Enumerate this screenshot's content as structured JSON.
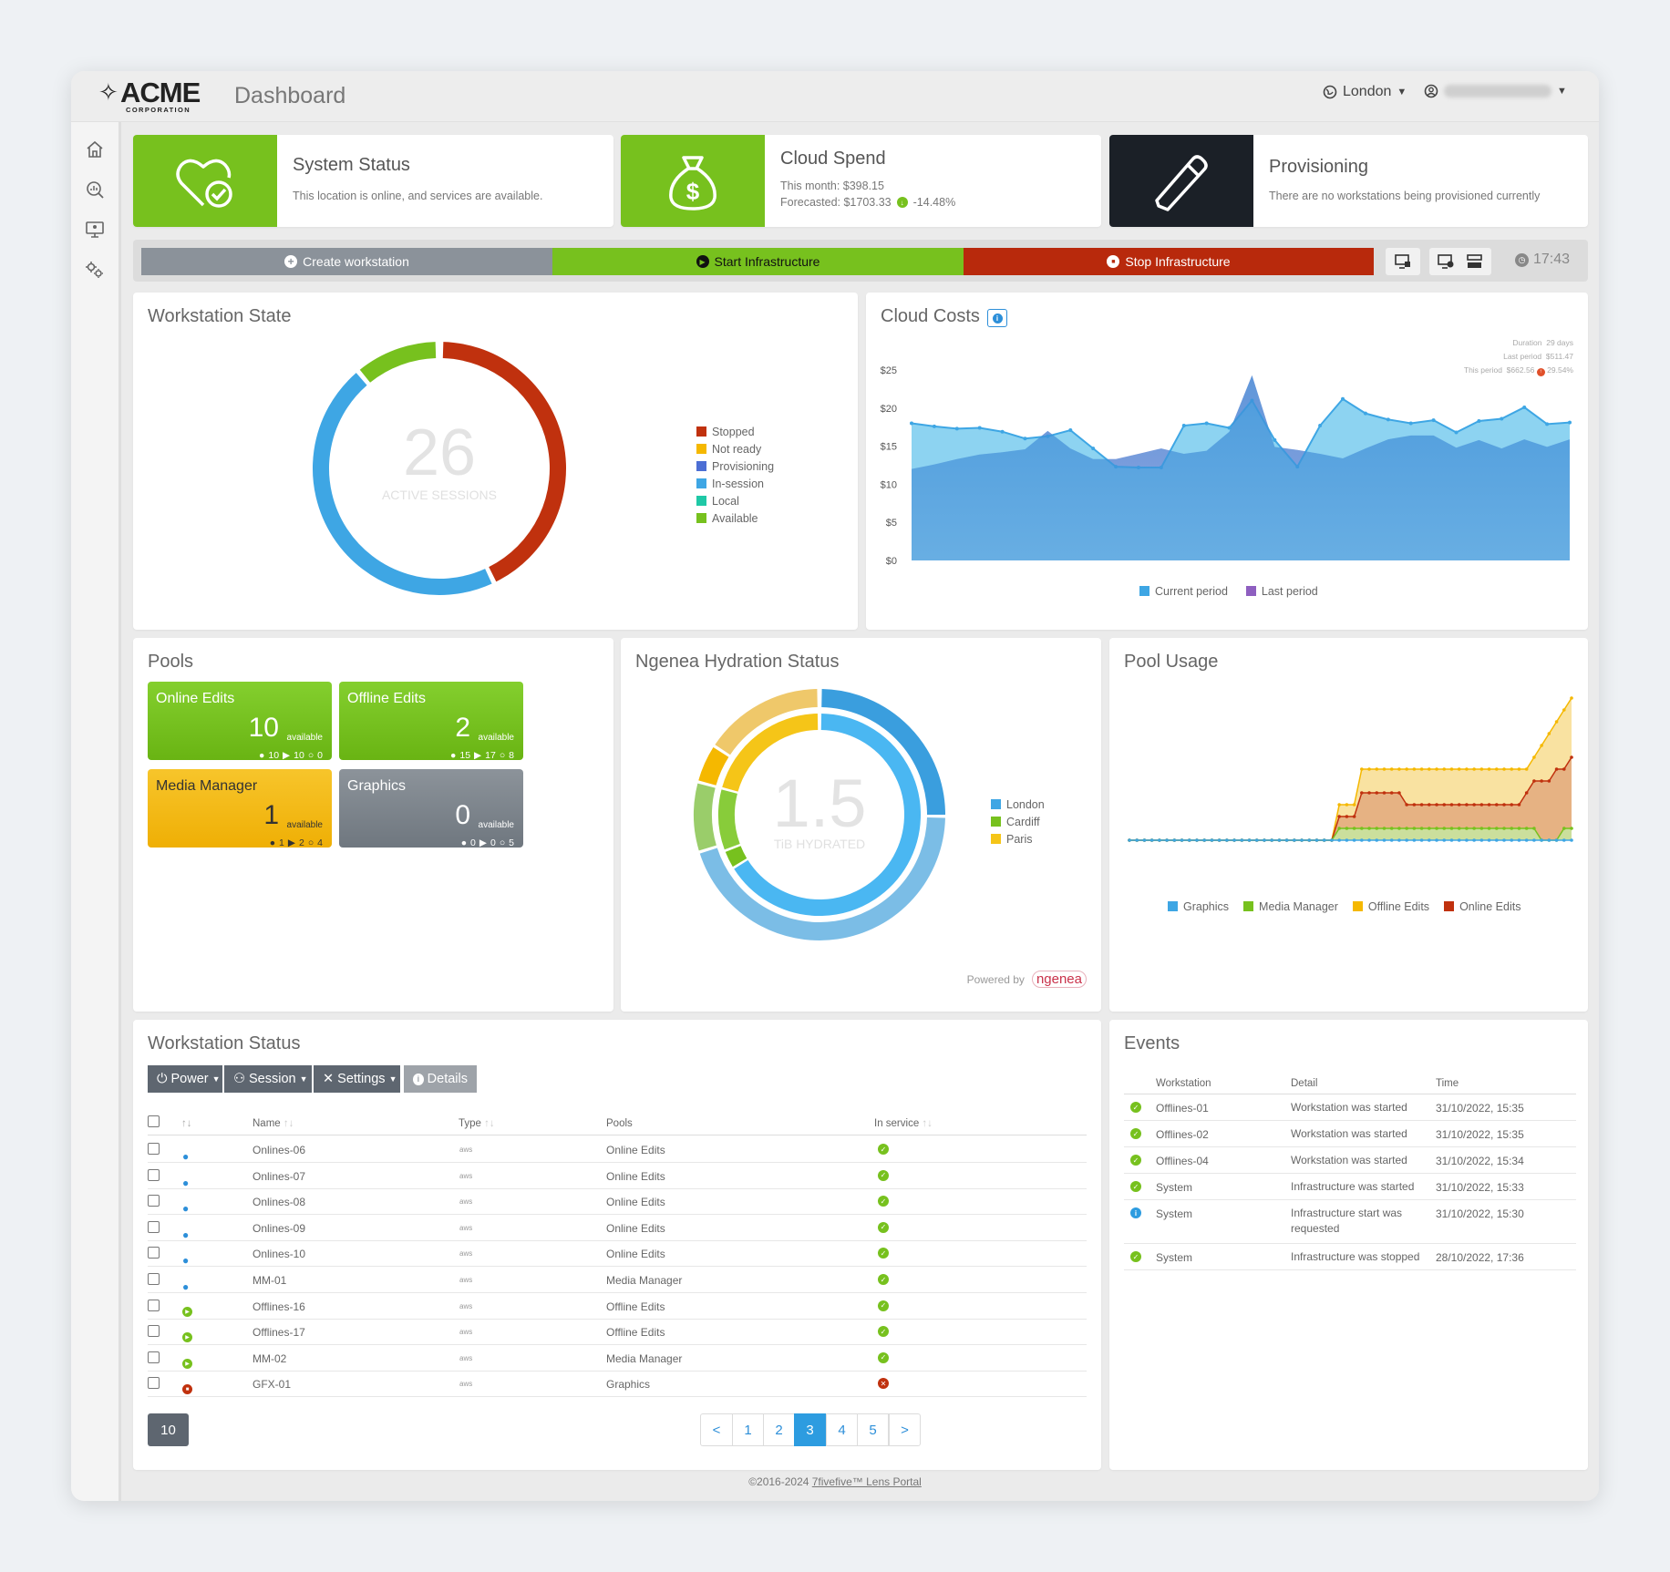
{
  "header": {
    "brand": "ACME",
    "brand_sub": "CORPORATION",
    "page_title": "Dashboard",
    "location": "London"
  },
  "sidebar": {
    "items": [
      "home-icon",
      "analytics-icon",
      "monitor-icon",
      "settings-icon"
    ]
  },
  "cards": {
    "system_status": {
      "title": "System Status",
      "text": "This location is online, and services are available.",
      "color": "#77c11e"
    },
    "cloud_spend": {
      "title": "Cloud Spend",
      "this_month": "This month: $398.15",
      "forecast": "Forecasted: $1703.33",
      "change": "-14.48%",
      "color": "#77c11e"
    },
    "provisioning": {
      "title": "Provisioning",
      "text": "There are no workstations being provisioned currently",
      "color": "#1b2027"
    }
  },
  "actions": {
    "create": "Create workstation",
    "start": "Start Infrastructure",
    "stop": "Stop Infrastructure",
    "time": "17:43"
  },
  "workstation_state": {
    "title": "Workstation State",
    "center_value": "26",
    "center_label": "ACTIVE SESSIONS",
    "legend": [
      {
        "label": "Stopped",
        "color": "#c0310e"
      },
      {
        "label": "Not ready",
        "color": "#f5b800"
      },
      {
        "label": "Provisioning",
        "color": "#4c6ed4"
      },
      {
        "label": "In-session",
        "color": "#3ea6e4"
      },
      {
        "label": "Local",
        "color": "#1fc8a6"
      },
      {
        "label": "Available",
        "color": "#77c11e"
      }
    ]
  },
  "cloud_costs": {
    "title": "Cloud Costs",
    "duration_label": "Duration",
    "duration": "29 days",
    "last_period_label": "Last period",
    "last_period": "$511.47",
    "this_period_label": "This period",
    "this_period": "$662.56",
    "this_change": "29.54%",
    "legend_current": "Current period",
    "legend_last": "Last period"
  },
  "pools": {
    "title": "Pools",
    "available_label": "available",
    "items": [
      {
        "name": "Online Edits",
        "available": "10",
        "s1": "10",
        "s2": "10",
        "s3": "0"
      },
      {
        "name": "Offline Edits",
        "available": "2",
        "s1": "15",
        "s2": "17",
        "s3": "8"
      },
      {
        "name": "Media Manager",
        "available": "1",
        "s1": "1",
        "s2": "2",
        "s3": "4"
      },
      {
        "name": "Graphics",
        "available": "0",
        "s1": "0",
        "s2": "0",
        "s3": "5"
      }
    ]
  },
  "hydration": {
    "title": "Ngenea Hydration Status",
    "center_value": "1.5",
    "center_label": "TiB HYDRATED",
    "legend": [
      {
        "label": "London",
        "color": "#3ea6e4"
      },
      {
        "label": "Cardiff",
        "color": "#77c11e"
      },
      {
        "label": "Paris",
        "color": "#f5c518"
      }
    ],
    "powered": "Powered by",
    "powered_brand": "ngenea"
  },
  "pool_usage": {
    "title": "Pool Usage",
    "legend": [
      {
        "label": "Graphics",
        "color": "#3ea6e4"
      },
      {
        "label": "Media Manager",
        "color": "#77c11e"
      },
      {
        "label": "Offline Edits",
        "color": "#f5b800"
      },
      {
        "label": "Online Edits",
        "color": "#c0310e"
      }
    ]
  },
  "workstation_status": {
    "title": "Workstation Status",
    "buttons": {
      "power": "Power",
      "session": "Session",
      "settings": "Settings",
      "details": "Details"
    },
    "columns": {
      "sort": "↑↓",
      "name": "Name",
      "type": "Type",
      "pools": "Pools",
      "in_service": "In service"
    },
    "rows": [
      {
        "state": "user",
        "name": "Onlines-06",
        "type": "aws",
        "pool": "Online Edits",
        "ok": true
      },
      {
        "state": "user",
        "name": "Onlines-07",
        "type": "aws",
        "pool": "Online Edits",
        "ok": true
      },
      {
        "state": "user",
        "name": "Onlines-08",
        "type": "aws",
        "pool": "Online Edits",
        "ok": true
      },
      {
        "state": "user",
        "name": "Onlines-09",
        "type": "aws",
        "pool": "Online Edits",
        "ok": true
      },
      {
        "state": "user",
        "name": "Onlines-10",
        "type": "aws",
        "pool": "Online Edits",
        "ok": true
      },
      {
        "state": "user",
        "name": "MM-01",
        "type": "aws",
        "pool": "Media Manager",
        "ok": true
      },
      {
        "state": "play",
        "name": "Offlines-16",
        "type": "aws",
        "pool": "Offline Edits",
        "ok": true
      },
      {
        "state": "play",
        "name": "Offlines-17",
        "type": "aws",
        "pool": "Offline Edits",
        "ok": true
      },
      {
        "state": "play",
        "name": "MM-02",
        "type": "aws",
        "pool": "Media Manager",
        "ok": true
      },
      {
        "state": "stop",
        "name": "GFX-01",
        "type": "aws",
        "pool": "Graphics",
        "ok": false
      }
    ],
    "page_size": "10",
    "pagination": [
      "<",
      "1",
      "2",
      "3",
      "4",
      "5",
      ">"
    ],
    "current_page": "3"
  },
  "events": {
    "title": "Events",
    "columns": {
      "workstation": "Workstation",
      "detail": "Detail",
      "time": "Time"
    },
    "rows": [
      {
        "icon": "ok",
        "ws": "Offlines-01",
        "detail": "Workstation was started",
        "time": "31/10/2022, 15:35"
      },
      {
        "icon": "ok",
        "ws": "Offlines-02",
        "detail": "Workstation was started",
        "time": "31/10/2022, 15:35"
      },
      {
        "icon": "ok",
        "ws": "Offlines-04",
        "detail": "Workstation was started",
        "time": "31/10/2022, 15:34"
      },
      {
        "icon": "ok",
        "ws": "System",
        "detail": "Infrastructure was started",
        "time": "31/10/2022, 15:33"
      },
      {
        "icon": "info",
        "ws": "System",
        "detail": "Infrastructure start was requested",
        "time": "31/10/2022, 15:30"
      },
      {
        "icon": "ok",
        "ws": "System",
        "detail": "Infrastructure was stopped",
        "time": "28/10/2022, 17:36"
      }
    ]
  },
  "footer": {
    "copyright": "©2016-2024 ",
    "link": "7fivefive™ Lens Portal"
  },
  "chart_data": [
    {
      "type": "area",
      "title": "Cloud Costs",
      "y_ticks": [
        "$25",
        "$20",
        "$15",
        "$10",
        "$5",
        "$0"
      ],
      "ylim": [
        0,
        25
      ],
      "series": [
        {
          "name": "Current period",
          "values": [
            18,
            17.6,
            17.3,
            17.4,
            16.9,
            16,
            16.3,
            17.1,
            14.7,
            12.3,
            12.2,
            12.2,
            17.7,
            18,
            17.4,
            21,
            15.8,
            12.3,
            17.7,
            21.2,
            19.3,
            18.5,
            18,
            18.4,
            16.8,
            18.3,
            18.6,
            20.1,
            17.9,
            18.1
          ]
        },
        {
          "name": "Last period",
          "values": [
            12,
            12.6,
            13.3,
            13.9,
            14.2,
            14.6,
            17,
            14.7,
            13.3,
            13.3,
            14,
            14.7,
            14,
            14.4,
            16.9,
            24.3,
            14.9,
            14.5,
            14,
            13.4,
            14.7,
            15.9,
            16.4,
            16.4,
            14.8,
            15.8,
            14.7,
            15.9,
            14.9,
            15.9
          ]
        }
      ]
    },
    {
      "type": "area",
      "title": "Pool Usage",
      "series": [
        {
          "name": "Graphics",
          "values": [
            0,
            0,
            0,
            0,
            0,
            0,
            0,
            0,
            0,
            0,
            0,
            0,
            0,
            0,
            0,
            0,
            0,
            0,
            0,
            0,
            0,
            0,
            0,
            0,
            0,
            0,
            0,
            0,
            0,
            0,
            0,
            0,
            0,
            0,
            0,
            0,
            0,
            0,
            0,
            0,
            0,
            0,
            0,
            0,
            0,
            0,
            0,
            0,
            0,
            0,
            0,
            0,
            0,
            0,
            0,
            0,
            0,
            0,
            0,
            0
          ]
        },
        {
          "name": "Media Manager",
          "values": [
            0,
            0,
            0,
            0,
            0,
            0,
            0,
            0,
            0,
            0,
            0,
            0,
            0,
            0,
            0,
            0,
            0,
            0,
            0,
            0,
            0,
            0,
            0,
            0,
            0,
            0,
            0,
            0,
            1,
            1,
            1,
            1,
            1,
            1,
            1,
            1,
            1,
            1,
            1,
            1,
            1,
            1,
            1,
            1,
            1,
            1,
            1,
            1,
            1,
            1,
            1,
            1,
            1,
            1,
            1,
            0,
            0,
            0,
            1,
            1
          ]
        },
        {
          "name": "Offline Edits",
          "values": [
            0,
            0,
            0,
            0,
            0,
            0,
            0,
            0,
            0,
            0,
            0,
            0,
            0,
            0,
            0,
            0,
            0,
            0,
            0,
            0,
            0,
            0,
            0,
            0,
            0,
            0,
            0,
            0,
            3,
            3,
            3,
            6,
            6,
            6,
            6,
            6,
            6,
            6,
            6,
            6,
            6,
            6,
            6,
            6,
            6,
            6,
            6,
            6,
            6,
            6,
            6,
            6,
            6,
            6,
            7,
            8,
            9,
            10,
            11,
            12
          ]
        },
        {
          "name": "Online Edits",
          "values": [
            0,
            0,
            0,
            0,
            0,
            0,
            0,
            0,
            0,
            0,
            0,
            0,
            0,
            0,
            0,
            0,
            0,
            0,
            0,
            0,
            0,
            0,
            0,
            0,
            0,
            0,
            0,
            0,
            2,
            2,
            2,
            4,
            4,
            4,
            4,
            4,
            4,
            3,
            3,
            3,
            3,
            3,
            3,
            3,
            3,
            3,
            3,
            3,
            3,
            3,
            3,
            3,
            3,
            4,
            5,
            5,
            5,
            6,
            6,
            7
          ]
        }
      ]
    }
  ]
}
